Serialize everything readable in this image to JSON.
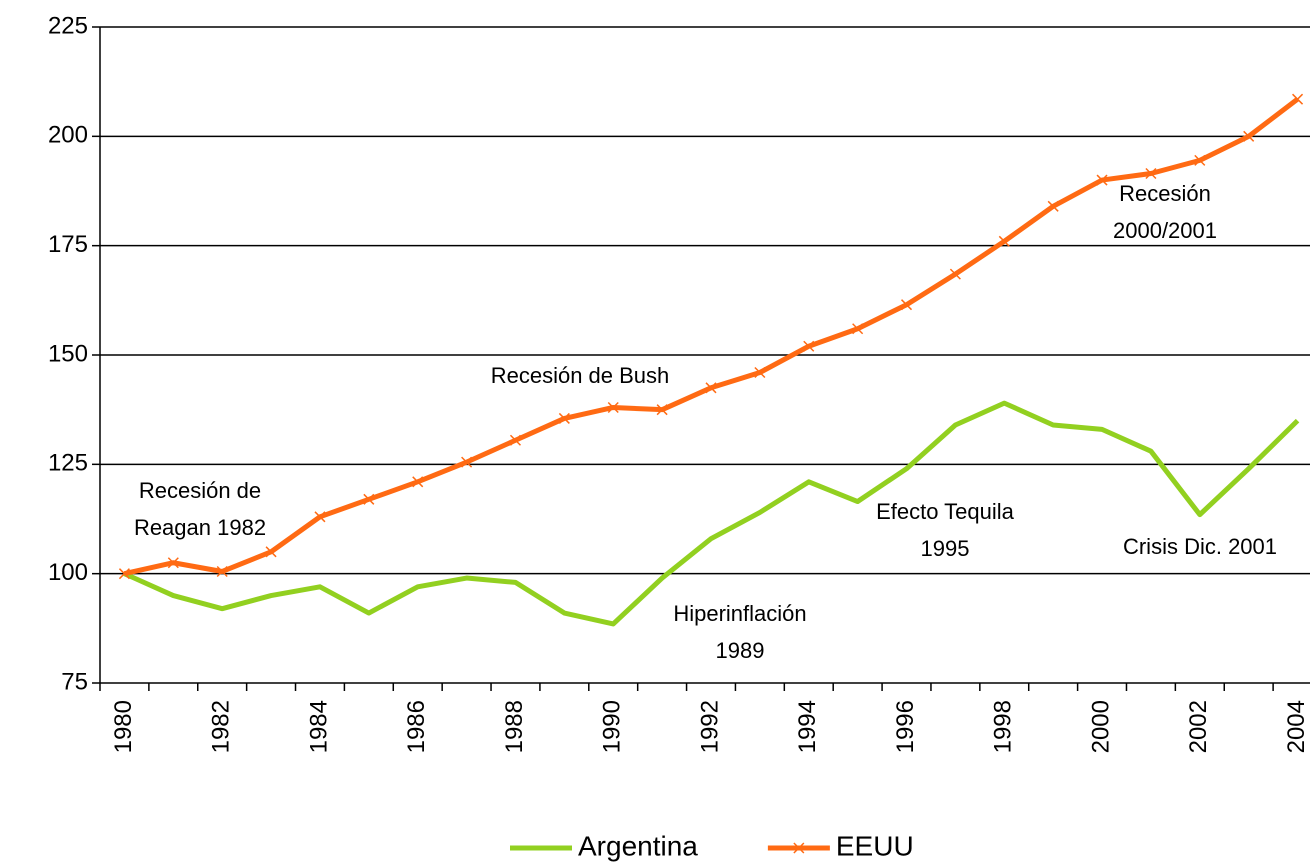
{
  "chart_data": {
    "type": "line",
    "categories": [
      "1980",
      null,
      "1982",
      null,
      "1984",
      null,
      "1986",
      null,
      "1988",
      null,
      "1990",
      null,
      "1992",
      null,
      "1994",
      null,
      "1996",
      null,
      "1998",
      null,
      "2000",
      null,
      "2002",
      null,
      "2004"
    ],
    "series": [
      {
        "name": "Argentina",
        "color": "#92d020",
        "marker": "none",
        "values": [
          100,
          95,
          92,
          95,
          97,
          91,
          97,
          99,
          98,
          91,
          88.5,
          99,
          108,
          114,
          121,
          116.5,
          124,
          134,
          139,
          134,
          133,
          128,
          113.5,
          124,
          135
        ]
      },
      {
        "name": "EEUU",
        "color": "#ff6a13",
        "marker": "x",
        "values": [
          100,
          102.5,
          100.5,
          105,
          113,
          117,
          121,
          125.5,
          130.5,
          135.5,
          138,
          137.5,
          142.5,
          146,
          152,
          156,
          161.5,
          168.5,
          176,
          184,
          190,
          191.5,
          194.5,
          200,
          208.5
        ]
      }
    ],
    "ylim": [
      75,
      225
    ],
    "yticks": [
      75,
      100,
      125,
      150,
      175,
      200,
      225
    ],
    "grid": true,
    "legend": "bottom",
    "annotations": [
      {
        "lines": [
          "Recesión de",
          "Reagan 1982"
        ]
      },
      {
        "lines": [
          "Recesión de Bush"
        ]
      },
      {
        "lines": [
          "Hiperinflación",
          "1989"
        ]
      },
      {
        "lines": [
          "Efecto Tequila",
          "1995"
        ]
      },
      {
        "lines": [
          "Crisis Dic. 2001"
        ]
      },
      {
        "lines": [
          "Recesión",
          "2000/2001"
        ]
      }
    ]
  }
}
